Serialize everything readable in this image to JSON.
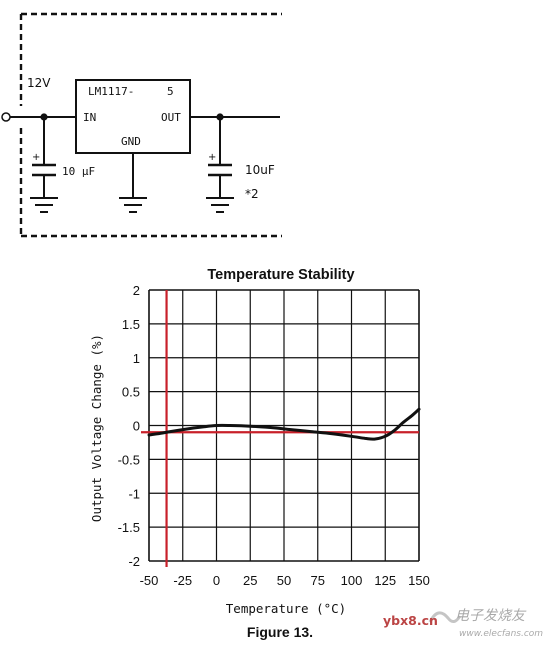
{
  "schematic": {
    "input_voltage": "12V",
    "ic_name": "LM1117-",
    "ic_variant": "5",
    "pin_in": "IN",
    "pin_out": "OUT",
    "pin_gnd": "GND",
    "cap_in_label": "10 μF",
    "cap_out_label": "10uF",
    "cap_out_note": "*2",
    "plus_sign": "+"
  },
  "figure": {
    "caption": "Figure 13.",
    "watermark_domain": "ybx8.cn",
    "watermark_cn": "电子发烧友",
    "watermark_url": "www.elecfans.com"
  },
  "colors": {
    "red_line": "#c8202a",
    "curve": "#111111",
    "grid": "#111111"
  },
  "chart_data": {
    "type": "line",
    "title": "Temperature Stability",
    "xlabel": "Temperature (°C)",
    "ylabel": "Output Voltage Change (%)",
    "xlim": [
      -50,
      150
    ],
    "ylim": [
      -2,
      2
    ],
    "x_ticks": [
      "-50",
      "-25",
      "0",
      "25",
      "50",
      "75",
      "100",
      "125",
      "150"
    ],
    "y_ticks": [
      "2",
      "1.5",
      "1",
      "0.5",
      "0",
      "-0.5",
      "-1",
      "-1.5",
      "-2"
    ],
    "grid": true,
    "series": [
      {
        "x": [
          -50,
          -40,
          -25,
          -10,
          0,
          10,
          25,
          40,
          55,
          70,
          85,
          100,
          110,
          117,
          125,
          132,
          138,
          145,
          150
        ],
        "y": [
          -0.14,
          -0.11,
          -0.06,
          -0.02,
          0.0,
          0.0,
          -0.01,
          -0.03,
          -0.06,
          -0.09,
          -0.12,
          -0.16,
          -0.19,
          -0.2,
          -0.16,
          -0.07,
          0.04,
          0.15,
          0.24
        ]
      }
    ],
    "reference_lines": {
      "horizontal_y": -0.1,
      "vertical_x": -37
    }
  }
}
